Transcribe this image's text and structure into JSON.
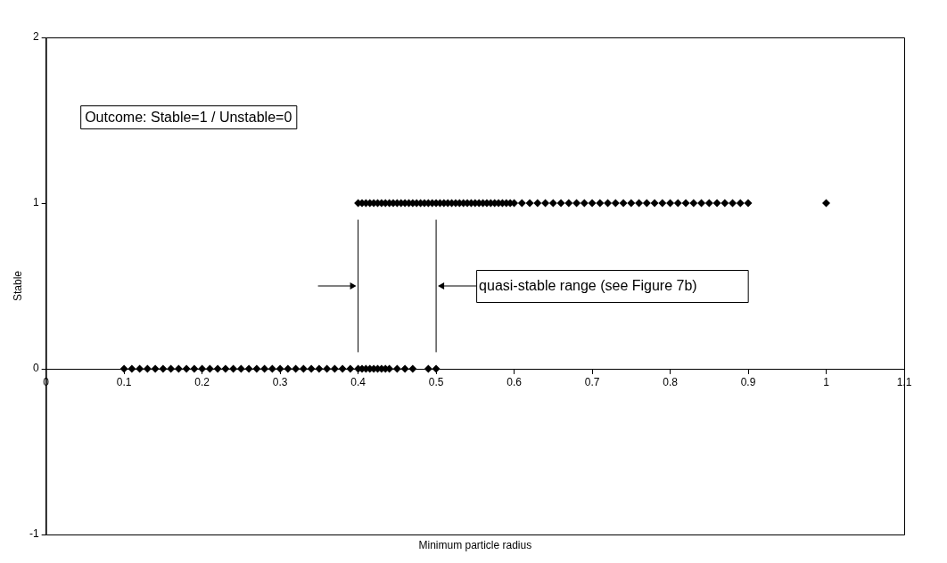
{
  "chart_data": {
    "type": "scatter",
    "xlabel": "Minimum particle radius",
    "ylabel": "Stable",
    "marker": "diamond",
    "grid": false,
    "legend": false,
    "xlim": [
      0,
      1.1
    ],
    "xticks": [
      0,
      0.1,
      0.2,
      0.3,
      0.4,
      0.5,
      0.6,
      0.7,
      0.8,
      0.9,
      1,
      1.1
    ],
    "ylim": [
      -1,
      2
    ],
    "yticks": [
      -1,
      0,
      1,
      2
    ],
    "series": [
      {
        "color": "#000000",
        "x": [
          0.1,
          0.11,
          0.12,
          0.13,
          0.14,
          0.15,
          0.16,
          0.17,
          0.18,
          0.19,
          0.2,
          0.21,
          0.22,
          0.23,
          0.24,
          0.25,
          0.26,
          0.27,
          0.28,
          0.29,
          0.3,
          0.31,
          0.32,
          0.33,
          0.34,
          0.35,
          0.36,
          0.37,
          0.38,
          0.39,
          0.4,
          0.405,
          0.41,
          0.415,
          0.42,
          0.425,
          0.43,
          0.435,
          0.44,
          0.45,
          0.46,
          0.47,
          0.49,
          0.5
        ],
        "values": [
          0,
          0,
          0,
          0,
          0,
          0,
          0,
          0,
          0,
          0,
          0,
          0,
          0,
          0,
          0,
          0,
          0,
          0,
          0,
          0,
          0,
          0,
          0,
          0,
          0,
          0,
          0,
          0,
          0,
          0,
          0,
          0,
          0,
          0,
          0,
          0,
          0,
          0,
          0,
          0,
          0,
          0,
          0,
          0
        ]
      },
      {
        "color": "#000000",
        "x": [
          0.4,
          0.405,
          0.41,
          0.415,
          0.42,
          0.425,
          0.43,
          0.435,
          0.44,
          0.445,
          0.45,
          0.455,
          0.46,
          0.465,
          0.47,
          0.475,
          0.48,
          0.485,
          0.49,
          0.495,
          0.5,
          0.505,
          0.51,
          0.515,
          0.52,
          0.525,
          0.53,
          0.535,
          0.54,
          0.545,
          0.55,
          0.555,
          0.56,
          0.565,
          0.57,
          0.575,
          0.58,
          0.585,
          0.59,
          0.595,
          0.6,
          0.61,
          0.62,
          0.63,
          0.64,
          0.65,
          0.66,
          0.67,
          0.68,
          0.69,
          0.7,
          0.71,
          0.72,
          0.73,
          0.74,
          0.75,
          0.76,
          0.77,
          0.78,
          0.79,
          0.8,
          0.81,
          0.82,
          0.83,
          0.84,
          0.85,
          0.86,
          0.87,
          0.88,
          0.89,
          0.9,
          1
        ],
        "values": [
          1,
          1,
          1,
          1,
          1,
          1,
          1,
          1,
          1,
          1,
          1,
          1,
          1,
          1,
          1,
          1,
          1,
          1,
          1,
          1,
          1,
          1,
          1,
          1,
          1,
          1,
          1,
          1,
          1,
          1,
          1,
          1,
          1,
          1,
          1,
          1,
          1,
          1,
          1,
          1,
          1,
          1,
          1,
          1,
          1,
          1,
          1,
          1,
          1,
          1,
          1,
          1,
          1,
          1,
          1,
          1,
          1,
          1,
          1,
          1,
          1,
          1,
          1,
          1,
          1,
          1,
          1,
          1,
          1,
          1,
          1,
          1
        ]
      }
    ],
    "ref_lines": [
      {
        "axis": "x",
        "value": 0.4,
        "label": null
      },
      {
        "axis": "x",
        "value": 0.5,
        "label": null
      }
    ],
    "annotations": [
      "Outcome: Stable=1 / Unstable=0",
      {
        "text": "quasi-stable range (see Figure 7b)",
        "x": 0.5,
        "y": 0.5
      }
    ]
  }
}
